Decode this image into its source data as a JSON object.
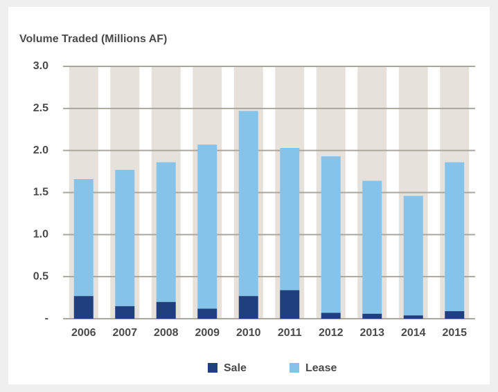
{
  "chart_data": {
    "type": "stacked_bar",
    "title": "Volume Traded (Millions AF)",
    "categories": [
      "2006",
      "2007",
      "2008",
      "2009",
      "2010",
      "2011",
      "2012",
      "2013",
      "2014",
      "2015"
    ],
    "series": [
      {
        "name": "Sale",
        "color": "#1f3f7f",
        "values": [
          0.27,
          0.15,
          0.2,
          0.12,
          0.27,
          0.34,
          0.07,
          0.06,
          0.04,
          0.09
        ]
      },
      {
        "name": "Lease",
        "color": "#86c3ea",
        "values": [
          1.39,
          1.62,
          1.66,
          1.95,
          2.2,
          1.69,
          1.86,
          1.58,
          1.42,
          1.77
        ]
      }
    ],
    "ylim": [
      0,
      3
    ],
    "yticks": [
      {
        "value": 0,
        "label": "-"
      },
      0.5,
      {
        "value": 1,
        "label": "1.0"
      },
      1.5,
      {
        "value": 2,
        "label": "2.0"
      },
      2.5,
      {
        "value": 3,
        "label": "3.0"
      }
    ],
    "grid": true
  }
}
